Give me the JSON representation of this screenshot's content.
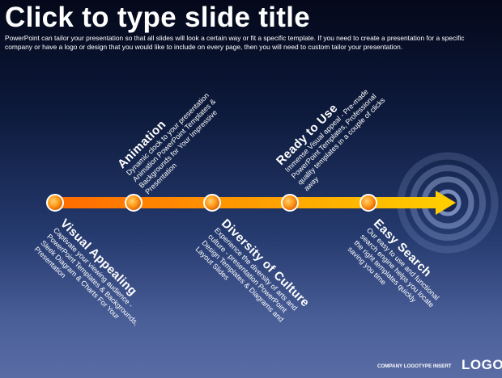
{
  "slide": {
    "title": "Click to type slide title",
    "subtitle": "PowerPoint can tailor your presentation so that all slides will look a certain way or fit a specific template. If you need to create a presentation for a specific company or have a logo or design that you would like to include on every page, then you will need to custom tailor your presentation."
  },
  "colors": {
    "arrow_start": "#ff6a00",
    "arrow_end": "#ffcc00",
    "background_top": "#04081a",
    "background_bottom": "#5a6ca4"
  },
  "milestones_above": [
    {
      "heading": "Animation",
      "body": "Dynamic clock to your presentation Animation PowerPoint Templates & Backgrounds for Your Impressive Presentation"
    },
    {
      "heading": "Ready to Use",
      "body": "Immense Visual appeal - Pre-made PowerPoint Templates, Professional quality templates in a couple of clicks away"
    }
  ],
  "milestones_below": [
    {
      "heading": "Visual Appealing",
      "body": "Captivate your viewing audience - PowerPoint Templates & Backgrounds, Sleek Diagram & Charts For Your Presentation"
    },
    {
      "heading": "Diversity of Culture",
      "body": "Experience the diversity of arts and culture - presentation PowerPoint Design Templates & Diagrams and Layout Slides"
    },
    {
      "heading": "Easy Search",
      "body": "Our easy to use and functional search engine helps you locate the right templates quickly saving you time"
    }
  ],
  "footer": {
    "company": "COMPANY LOGOTYPE INSERT",
    "logo": "LOGO"
  }
}
